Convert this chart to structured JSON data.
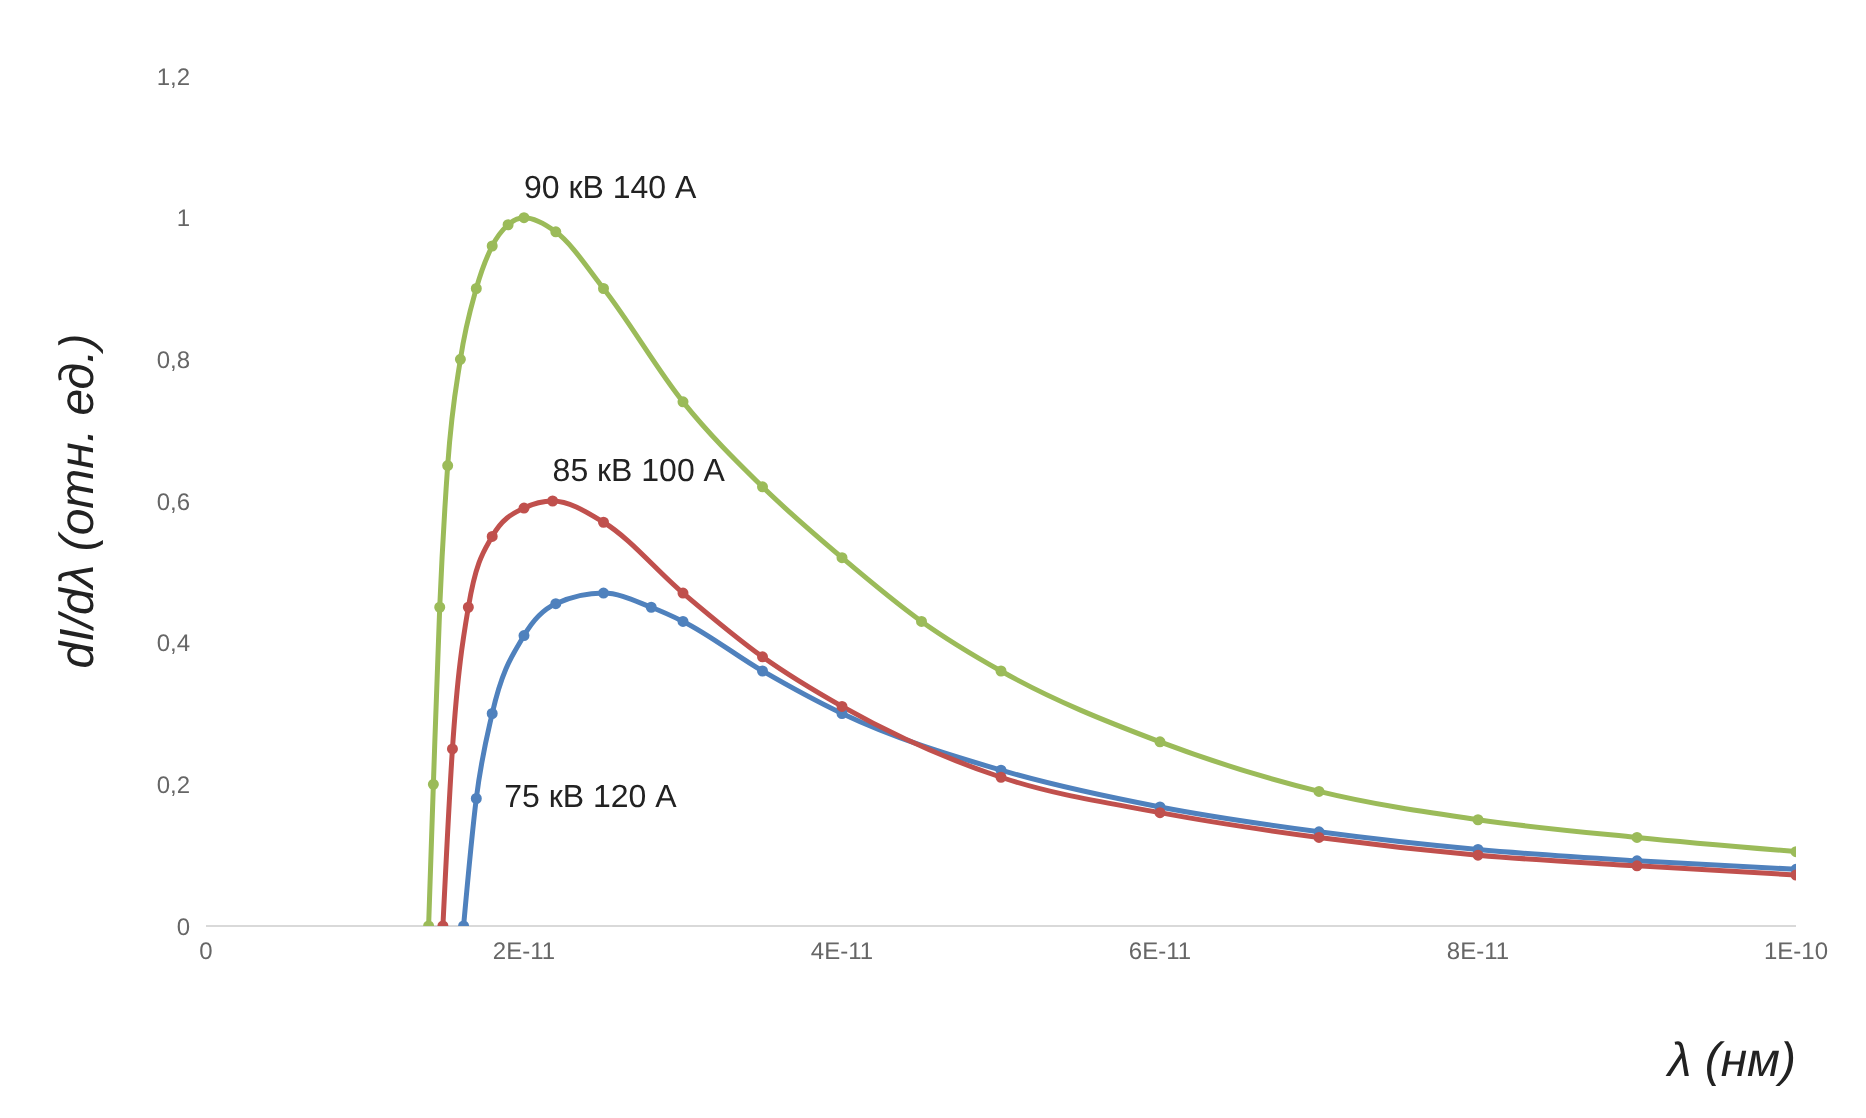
{
  "chart_data": {
    "type": "line",
    "xlabel": "λ (нм)",
    "ylabel": "dI/dλ (отн. ед.)",
    "xlim": [
      0,
      1e-10
    ],
    "xticks": [
      0,
      {
        "value": 2e-11,
        "label": "2E-11"
      },
      {
        "value": 4e-11,
        "label": "4E-11"
      },
      {
        "value": 6e-11,
        "label": "6E-11"
      },
      {
        "value": 8e-11,
        "label": "8E-11"
      },
      {
        "value": 1e-10,
        "label": "1E-10"
      }
    ],
    "ylim": [
      0,
      1.2
    ],
    "yticks": [
      0,
      {
        "value": 0.2,
        "label": "0,2"
      },
      {
        "value": 0.4,
        "label": "0,4"
      },
      {
        "value": 0.6,
        "label": "0,6"
      },
      {
        "value": 0.8,
        "label": "0,8"
      },
      1,
      {
        "value": 1.2,
        "label": "1,2"
      }
    ],
    "grid": false,
    "legend": false,
    "marker": "circle",
    "line_style": "solid",
    "series": [
      {
        "name": "90 кВ 140 А",
        "color": "#9bbb59",
        "x": [
          1.4e-11,
          1.43e-11,
          1.47e-11,
          1.52e-11,
          1.6e-11,
          1.7e-11,
          1.8e-11,
          1.9e-11,
          2e-11,
          2.2e-11,
          2.5e-11,
          3e-11,
          3.5e-11,
          4e-11,
          4.5e-11,
          5e-11,
          6e-11,
          7e-11,
          8e-11,
          9e-11,
          1e-10
        ],
        "values": [
          0,
          0.2,
          0.45,
          0.65,
          0.8,
          0.9,
          0.96,
          0.99,
          1.0,
          0.98,
          0.9,
          0.74,
          0.62,
          0.52,
          0.43,
          0.36,
          0.26,
          0.19,
          0.15,
          0.125,
          0.105
        ]
      },
      {
        "name": "85 кВ 100 А",
        "color": "#c0504d",
        "x": [
          1.49e-11,
          1.55e-11,
          1.65e-11,
          1.8e-11,
          2e-11,
          2.18e-11,
          2.5e-11,
          3e-11,
          3.5e-11,
          4e-11,
          5e-11,
          6e-11,
          7e-11,
          8e-11,
          9e-11,
          1e-10
        ],
        "values": [
          0,
          0.25,
          0.45,
          0.55,
          0.59,
          0.6,
          0.57,
          0.47,
          0.38,
          0.31,
          0.21,
          0.16,
          0.125,
          0.1,
          0.085,
          0.072
        ]
      },
      {
        "name": "75 кВ 120 А",
        "color": "#4f81bd",
        "x": [
          1.62e-11,
          1.7e-11,
          1.8e-11,
          2e-11,
          2.2e-11,
          2.5e-11,
          2.8e-11,
          3e-11,
          3.5e-11,
          4e-11,
          5e-11,
          6e-11,
          7e-11,
          8e-11,
          9e-11,
          1e-10
        ],
        "values": [
          0,
          0.18,
          0.3,
          0.41,
          0.455,
          0.47,
          0.45,
          0.43,
          0.36,
          0.3,
          0.22,
          0.168,
          0.133,
          0.108,
          0.092,
          0.08
        ]
      }
    ]
  }
}
